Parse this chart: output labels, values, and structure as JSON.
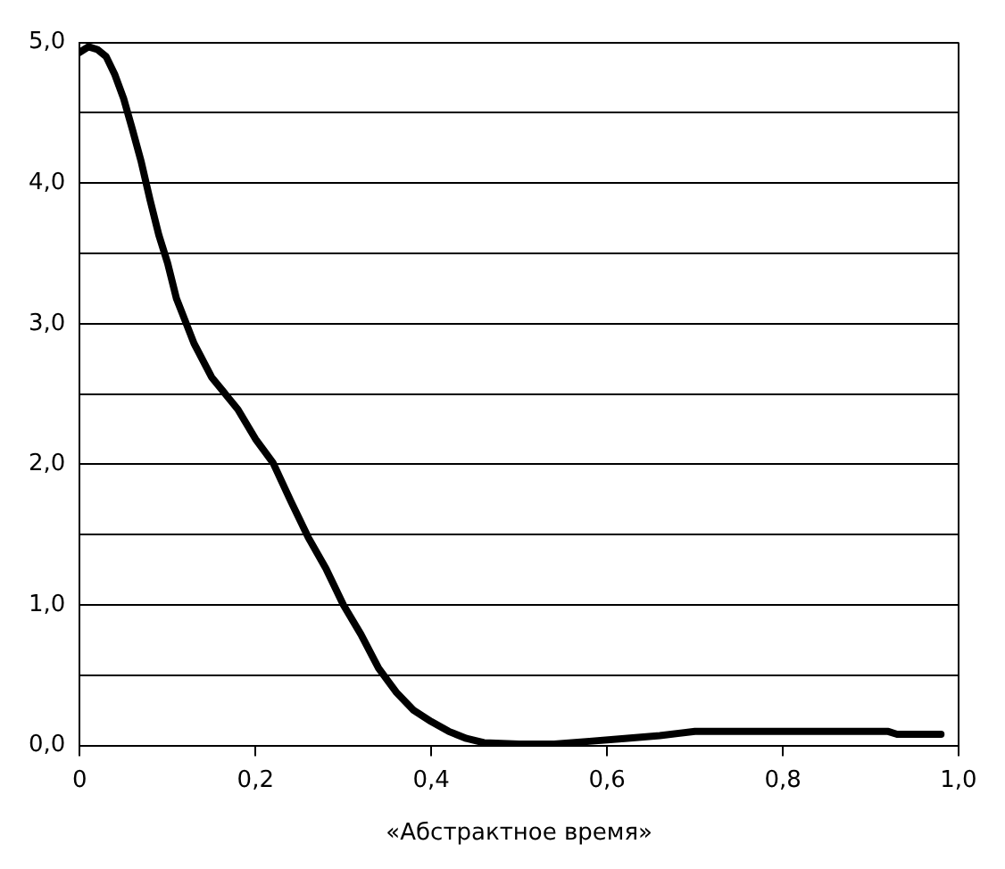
{
  "chart_data": {
    "type": "line",
    "xlabel": "«Абстрактное время»",
    "x": [
      0,
      0.01,
      0.02,
      0.03,
      0.04,
      0.05,
      0.06,
      0.07,
      0.08,
      0.09,
      0.1,
      0.11,
      0.12,
      0.13,
      0.15,
      0.18,
      0.2,
      0.22,
      0.24,
      0.26,
      0.28,
      0.3,
      0.32,
      0.34,
      0.36,
      0.38,
      0.4,
      0.42,
      0.44,
      0.46,
      0.5,
      0.54,
      0.58,
      0.62,
      0.66,
      0.7,
      0.8,
      0.9,
      0.92,
      0.93,
      0.98
    ],
    "series": [
      {
        "color": "#000000",
        "values": [
          4.93,
          4.97,
          4.95,
          4.9,
          4.77,
          4.6,
          4.38,
          4.15,
          3.88,
          3.63,
          3.43,
          3.18,
          3.02,
          2.86,
          2.62,
          2.39,
          2.18,
          2.01,
          1.74,
          1.48,
          1.26,
          1.0,
          0.79,
          0.55,
          0.38,
          0.25,
          0.17,
          0.1,
          0.05,
          0.02,
          0.01,
          0.01,
          0.03,
          0.05,
          0.07,
          0.1,
          0.1,
          0.1,
          0.1,
          0.08,
          0.08
        ]
      }
    ],
    "xlim": [
      0,
      1
    ],
    "xticks": [
      0,
      {
        "value": 0.2,
        "label": "0,2"
      },
      {
        "value": 0.4,
        "label": "0,4"
      },
      {
        "value": 0.6,
        "label": "0,6"
      },
      {
        "value": 0.8,
        "label": "0,8"
      },
      {
        "value": 1,
        "label": "1,0"
      }
    ],
    "ylim": [
      0,
      5
    ],
    "yticks": [
      {
        "value": 0,
        "label": "0,0"
      },
      {
        "value": 0.5,
        "label": null
      },
      {
        "value": 1,
        "label": "1,0"
      },
      {
        "value": 1.5,
        "label": null
      },
      {
        "value": 2,
        "label": "2,0"
      },
      {
        "value": 2.5,
        "label": null
      },
      {
        "value": 3,
        "label": "3,0"
      },
      {
        "value": 3.5,
        "label": null
      },
      {
        "value": 4,
        "label": "4,0"
      },
      {
        "value": 4.5,
        "label": null
      },
      {
        "value": 5,
        "label": "5,0"
      }
    ],
    "grid": "y",
    "legend": false,
    "marker": "none",
    "line_style": "solid"
  }
}
